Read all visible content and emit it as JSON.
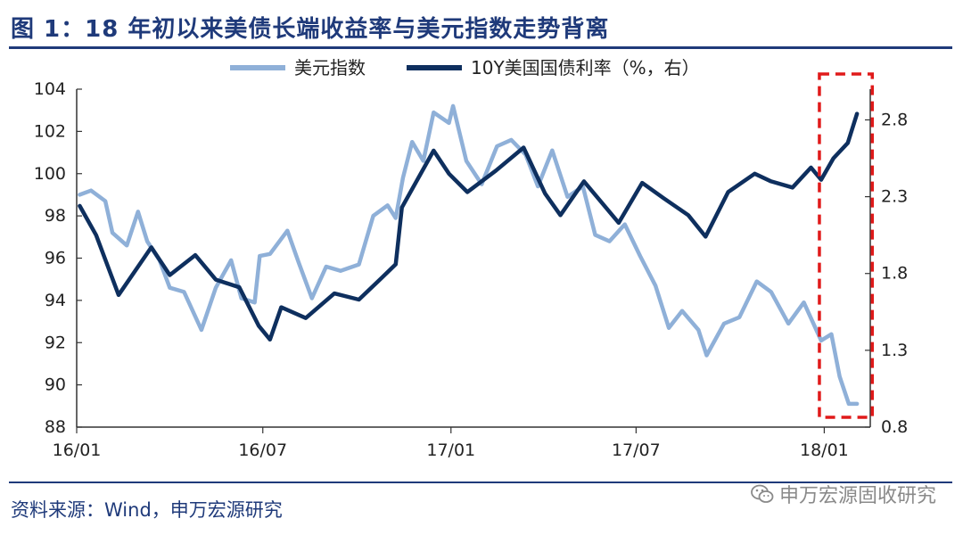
{
  "figure_title": "图 1：18 年初以来美债长端收益率与美元指数走势背离",
  "source_note": "资料来源：Wind，申万宏源研究",
  "watermark": "申万宏源固收研究",
  "watermark_icon": "wechat-icon",
  "colors": {
    "usd_index": "#8fb0d8",
    "ust10y": "#0e2f5e",
    "highlight": "#e01a1a",
    "title": "#1f3a7a",
    "axis": "#333333"
  },
  "chart_data": {
    "type": "line",
    "title": "",
    "legend_position": "top-center",
    "grid": false,
    "x_ticks": [
      "16/01",
      "16/07",
      "17/01",
      "17/07",
      "18/01"
    ],
    "x_tick_dates": [
      "2016-01-01",
      "2016-07-01",
      "2017-01-01",
      "2017-07-01",
      "2018-01-01"
    ],
    "xlim": [
      "2016-01-01",
      "2018-02-15"
    ],
    "y_left": {
      "ticks": [
        "104",
        "102",
        "100",
        "98",
        "96",
        "94",
        "92",
        "90",
        "88"
      ],
      "lim": [
        88,
        104
      ]
    },
    "y_right": {
      "ticks": [
        "2.8",
        "2.3",
        "1.8",
        "1.3",
        "0.8"
      ],
      "lim": [
        0.8,
        3.0
      ]
    },
    "highlight_box": {
      "x_from": "2017-12-29",
      "x_to": "2018-02-10",
      "label": ""
    },
    "series": [
      {
        "name": "美元指数",
        "axis": "left",
        "points": [
          [
            "2016-01-04",
            99.0
          ],
          [
            "2016-01-15",
            99.2
          ],
          [
            "2016-01-29",
            98.7
          ],
          [
            "2016-02-05",
            97.2
          ],
          [
            "2016-02-19",
            96.6
          ],
          [
            "2016-03-01",
            98.2
          ],
          [
            "2016-03-10",
            96.8
          ],
          [
            "2016-03-22",
            95.9
          ],
          [
            "2016-04-01",
            94.6
          ],
          [
            "2016-04-15",
            94.4
          ],
          [
            "2016-05-02",
            92.6
          ],
          [
            "2016-05-16",
            94.6
          ],
          [
            "2016-05-31",
            95.9
          ],
          [
            "2016-06-10",
            94.1
          ],
          [
            "2016-06-23",
            93.9
          ],
          [
            "2016-06-28",
            96.1
          ],
          [
            "2016-07-08",
            96.2
          ],
          [
            "2016-07-25",
            97.3
          ],
          [
            "2016-08-05",
            95.8
          ],
          [
            "2016-08-18",
            94.1
          ],
          [
            "2016-09-01",
            95.6
          ],
          [
            "2016-09-15",
            95.4
          ],
          [
            "2016-10-03",
            95.7
          ],
          [
            "2016-10-17",
            98.0
          ],
          [
            "2016-10-31",
            98.5
          ],
          [
            "2016-11-08",
            97.9
          ],
          [
            "2016-11-15",
            99.8
          ],
          [
            "2016-11-24",
            101.5
          ],
          [
            "2016-12-05",
            100.6
          ],
          [
            "2016-12-15",
            102.9
          ],
          [
            "2016-12-30",
            102.4
          ],
          [
            "2017-01-03",
            103.2
          ],
          [
            "2017-01-16",
            100.6
          ],
          [
            "2017-01-31",
            99.5
          ],
          [
            "2017-02-15",
            101.3
          ],
          [
            "2017-03-01",
            101.6
          ],
          [
            "2017-03-15",
            100.9
          ],
          [
            "2017-03-27",
            99.4
          ],
          [
            "2017-04-10",
            101.1
          ],
          [
            "2017-04-25",
            98.9
          ],
          [
            "2017-05-10",
            99.4
          ],
          [
            "2017-05-22",
            97.1
          ],
          [
            "2017-06-05",
            96.8
          ],
          [
            "2017-06-20",
            97.6
          ],
          [
            "2017-07-05",
            96.1
          ],
          [
            "2017-07-20",
            94.7
          ],
          [
            "2017-08-02",
            92.7
          ],
          [
            "2017-08-15",
            93.5
          ],
          [
            "2017-08-31",
            92.6
          ],
          [
            "2017-09-08",
            91.4
          ],
          [
            "2017-09-25",
            92.9
          ],
          [
            "2017-10-10",
            93.2
          ],
          [
            "2017-10-27",
            94.9
          ],
          [
            "2017-11-10",
            94.4
          ],
          [
            "2017-11-27",
            92.9
          ],
          [
            "2017-12-12",
            93.9
          ],
          [
            "2017-12-29",
            92.1
          ],
          [
            "2018-01-08",
            92.4
          ],
          [
            "2018-01-16",
            90.4
          ],
          [
            "2018-01-25",
            89.1
          ],
          [
            "2018-02-02",
            89.1
          ]
        ]
      },
      {
        "name": "10Y美国国债利率（%，右）",
        "axis": "right",
        "points": [
          [
            "2016-01-04",
            2.24
          ],
          [
            "2016-01-20",
            2.05
          ],
          [
            "2016-02-11",
            1.66
          ],
          [
            "2016-03-14",
            1.97
          ],
          [
            "2016-04-01",
            1.79
          ],
          [
            "2016-04-26",
            1.92
          ],
          [
            "2016-05-16",
            1.76
          ],
          [
            "2016-06-08",
            1.71
          ],
          [
            "2016-06-27",
            1.46
          ],
          [
            "2016-07-08",
            1.37
          ],
          [
            "2016-07-19",
            1.58
          ],
          [
            "2016-08-12",
            1.51
          ],
          [
            "2016-09-09",
            1.67
          ],
          [
            "2016-10-03",
            1.63
          ],
          [
            "2016-10-25",
            1.77
          ],
          [
            "2016-11-08",
            1.86
          ],
          [
            "2016-11-14",
            2.23
          ],
          [
            "2016-12-15",
            2.6
          ],
          [
            "2016-12-30",
            2.45
          ],
          [
            "2017-01-17",
            2.33
          ],
          [
            "2017-02-14",
            2.47
          ],
          [
            "2017-03-13",
            2.62
          ],
          [
            "2017-04-03",
            2.32
          ],
          [
            "2017-04-18",
            2.18
          ],
          [
            "2017-05-11",
            2.4
          ],
          [
            "2017-06-14",
            2.13
          ],
          [
            "2017-07-07",
            2.39
          ],
          [
            "2017-07-28",
            2.29
          ],
          [
            "2017-08-21",
            2.18
          ],
          [
            "2017-09-07",
            2.04
          ],
          [
            "2017-09-29",
            2.33
          ],
          [
            "2017-10-25",
            2.45
          ],
          [
            "2017-11-10",
            2.4
          ],
          [
            "2017-12-01",
            2.36
          ],
          [
            "2017-12-19",
            2.49
          ],
          [
            "2017-12-29",
            2.41
          ],
          [
            "2018-01-10",
            2.55
          ],
          [
            "2018-01-24",
            2.65
          ],
          [
            "2018-02-02",
            2.84
          ]
        ]
      }
    ]
  }
}
